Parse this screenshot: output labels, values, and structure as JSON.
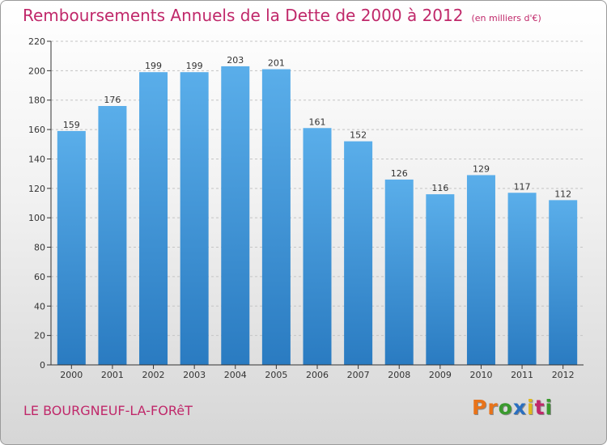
{
  "header": {
    "title": "Remboursements Annuels de la Dette de 2000 à 2012",
    "subtitle": "(en milliers d'€)"
  },
  "footer": {
    "town": "LE BOURGNEUF-LA-FORêT",
    "brand": "Proxiti",
    "brand_colors": [
      "#e8731a",
      "#e8731a",
      "#3a9a2e",
      "#2a6fc0",
      "#e0b81c",
      "#c0286a",
      "#3a9a2e"
    ]
  },
  "colors": {
    "accent": "#c0286a",
    "bar_top": "#5aaeea",
    "bar_bottom": "#2a7bc1",
    "grid": "#c4c4c4",
    "axis": "#333333"
  },
  "chart_data": {
    "type": "bar",
    "categories": [
      "2000",
      "2001",
      "2002",
      "2003",
      "2004",
      "2005",
      "2006",
      "2007",
      "2008",
      "2009",
      "2010",
      "2011",
      "2012"
    ],
    "values": [
      159,
      176,
      199,
      199,
      203,
      201,
      161,
      152,
      126,
      116,
      129,
      117,
      112
    ],
    "title": "Remboursements Annuels de la Dette de 2000 à 2012",
    "ylim": [
      0,
      220
    ],
    "yticks": [
      0,
      20,
      40,
      60,
      80,
      100,
      120,
      140,
      160,
      180,
      200,
      220
    ],
    "grid": true,
    "data_labels": true
  }
}
